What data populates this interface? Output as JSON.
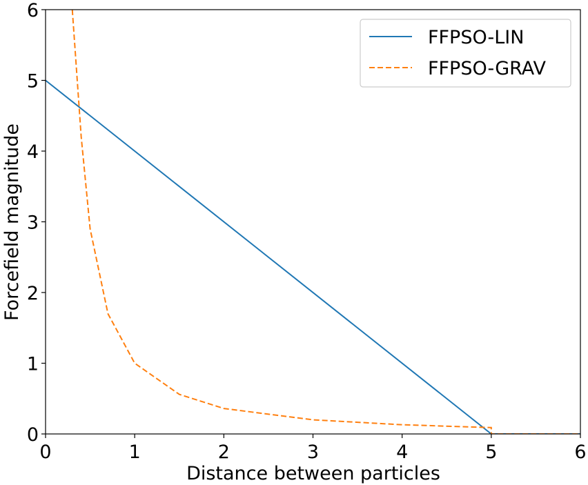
{
  "chart_data": {
    "type": "line",
    "xlabel": "Distance between particles",
    "ylabel": "Forcefield magnitude",
    "xlim": [
      0,
      6
    ],
    "ylim": [
      0,
      6
    ],
    "xticks": [
      0,
      1,
      2,
      3,
      4,
      5,
      6
    ],
    "yticks": [
      0,
      1,
      2,
      3,
      4,
      5,
      6
    ],
    "grid": false,
    "legend_position": "top-right",
    "series": [
      {
        "name": "FFPSO-LIN",
        "color": "#1f77b4",
        "line_style": "solid",
        "x": [
          0,
          5,
          6
        ],
        "y": [
          5,
          0,
          0
        ]
      },
      {
        "name": "FFPSO-GRAV",
        "color": "#ff7f0e",
        "line_style": "dashed",
        "x": [
          0.3,
          0.4,
          0.5,
          0.7,
          1.0,
          1.5,
          2.0,
          3.0,
          4.0,
          5.0,
          5.0,
          6.0
        ],
        "y": [
          6.0,
          4.2,
          2.9,
          1.7,
          1.0,
          0.56,
          0.36,
          0.2,
          0.13,
          0.09,
          0.0,
          0.0
        ]
      }
    ]
  }
}
